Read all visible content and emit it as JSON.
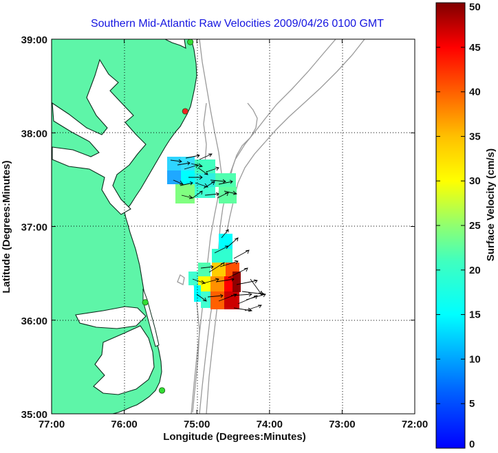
{
  "chart_data": {
    "type": "vector-field-map",
    "title": "Southern Mid-Atlantic Raw Velocities 2009/04/26 0100 GMT",
    "xlabel": "Longitude (Degrees:Minutes)",
    "ylabel": "Latitude (Degrees:Minutes)",
    "colorbar_label": "Surface Velocity (cm/s)",
    "x_ticks": [
      "77:00",
      "76:00",
      "75:00",
      "74:00",
      "73:00",
      "72:00"
    ],
    "y_ticks": [
      "39:00",
      "38:00",
      "37:00",
      "36:00",
      "35:00"
    ],
    "colorbar_ticks": [
      "0",
      "5",
      "10",
      "15",
      "20",
      "25",
      "30",
      "35",
      "40",
      "45",
      "50"
    ],
    "xlim": [
      -77,
      -72
    ],
    "ylim": [
      35,
      39
    ],
    "clim": [
      0,
      50
    ],
    "grid": true,
    "colorbar_position": "right",
    "colors": {
      "land": "#5ef5a8",
      "coast": "#0a2a1a",
      "bathymetry": "#9a9a9a",
      "grid": "#000000",
      "title": "#1414e0"
    },
    "stations": [
      {
        "lon": -75.09,
        "lat": 38.97,
        "color": "#33dd33"
      },
      {
        "lon": -75.16,
        "lat": 38.23,
        "color": "#ee2222"
      },
      {
        "lon": -75.71,
        "lat": 36.19,
        "color": "#33dd33"
      },
      {
        "lon": -75.48,
        "lat": 35.25,
        "color": "#33dd33"
      }
    ],
    "velocity_regions": [
      {
        "name": "north",
        "lon_range": [
          -75.62,
          -74.4
        ],
        "lat_range": [
          37.22,
          37.72
        ],
        "speed_range_cm_s": [
          6,
          18
        ]
      },
      {
        "name": "south",
        "lon_range": [
          -75.1,
          -74.35
        ],
        "lat_range": [
          36.12,
          36.9
        ],
        "speed_range_cm_s": [
          8,
          50
        ]
      }
    ]
  }
}
